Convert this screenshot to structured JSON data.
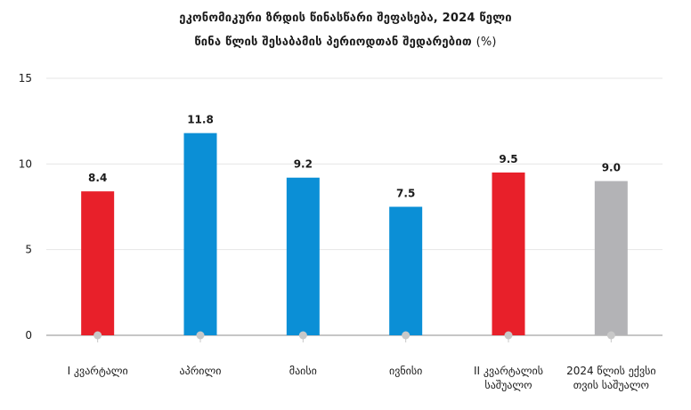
{
  "chart_data": {
    "type": "bar",
    "title_line1": "ეკონომიკური ზრდის წინასწარი შეფასება, 2024 წელი",
    "title_line2": "წინა წლის შესაბამის პერიოდთან შედარებით",
    "unit": "(%)",
    "categories": [
      [
        "I კვარტალი"
      ],
      [
        "აპრილი"
      ],
      [
        "მაისი"
      ],
      [
        "ივნისი"
      ],
      [
        "II კვარტალის",
        "საშუალო"
      ],
      [
        "2024 წლის ექვსი",
        "თვის საშუალო"
      ]
    ],
    "values": [
      8.4,
      11.8,
      9.2,
      7.5,
      9.5,
      9.0
    ],
    "value_labels": [
      "8.4",
      "11.8",
      "9.2",
      "7.5",
      "9.5",
      "9.0"
    ],
    "ylim": [
      0,
      15
    ],
    "yticks": [
      0,
      5,
      10,
      15
    ],
    "grid": true,
    "colors": {
      "red": "#e8202a",
      "blue": "#0b8fd6",
      "gray": "#b3b3b6",
      "grid": "#e6e6e6",
      "axis": "#8c8c8c",
      "marker": "#c8c8c8"
    },
    "bar_colors": [
      "red",
      "blue",
      "blue",
      "blue",
      "red",
      "gray"
    ]
  }
}
